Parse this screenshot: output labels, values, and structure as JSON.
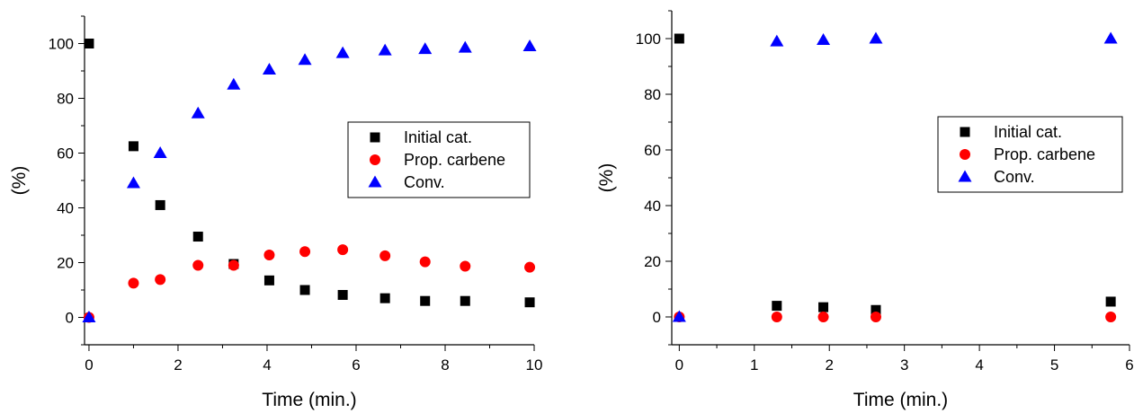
{
  "chart_data": [
    {
      "type": "scatter",
      "title": "",
      "xlabel": "Time (min.)",
      "ylabel": "(%)",
      "xlim": [
        -0.1,
        10
      ],
      "ylim": [
        -10,
        110
      ],
      "xticks": [
        0,
        2,
        4,
        6,
        8,
        10
      ],
      "yticks": [
        0,
        20,
        40,
        60,
        80,
        100
      ],
      "grid": false,
      "legend_position": "center-right",
      "series": [
        {
          "name": "Initial cat.",
          "marker": "square",
          "color": "#000000",
          "x": [
            0,
            1,
            1.6,
            2.45,
            3.25,
            4.05,
            4.85,
            5.7,
            6.65,
            7.55,
            8.45,
            9.9
          ],
          "y": [
            100,
            62.5,
            41,
            29.5,
            19.5,
            13.5,
            10,
            8.2,
            7,
            6,
            6,
            5.5
          ]
        },
        {
          "name": "Prop. carbene",
          "marker": "circle",
          "color": "#ff0000",
          "x": [
            0,
            1,
            1.6,
            2.45,
            3.25,
            4.05,
            4.85,
            5.7,
            6.65,
            7.55,
            8.45,
            9.9
          ],
          "y": [
            0,
            12.5,
            13.8,
            19,
            19,
            22.8,
            24,
            24.7,
            22.5,
            20.3,
            18.7,
            18.3
          ]
        },
        {
          "name": "Conv.",
          "marker": "triangle",
          "color": "#0000ff",
          "x": [
            0,
            1,
            1.6,
            2.45,
            3.25,
            4.05,
            4.85,
            5.7,
            6.65,
            7.55,
            8.45,
            9.9
          ],
          "y": [
            0,
            49,
            60,
            74.5,
            85,
            90.5,
            94,
            96.5,
            97.5,
            98,
            98.5,
            99
          ]
        }
      ]
    },
    {
      "type": "scatter",
      "title": "",
      "xlabel": "Time (min.)",
      "ylabel": "(%)",
      "xlim": [
        -0.1,
        6
      ],
      "ylim": [
        -10,
        110
      ],
      "xticks": [
        0,
        1,
        2,
        3,
        4,
        5,
        6
      ],
      "yticks": [
        0,
        20,
        40,
        60,
        80,
        100
      ],
      "grid": false,
      "legend_position": "center-right",
      "series": [
        {
          "name": "Initial cat.",
          "marker": "square",
          "color": "#000000",
          "x": [
            0,
            1.3,
            1.92,
            2.62,
            5.75
          ],
          "y": [
            100,
            4,
            3.5,
            2.5,
            5.5
          ]
        },
        {
          "name": "Prop. carbene",
          "marker": "circle",
          "color": "#ff0000",
          "x": [
            0,
            1.3,
            1.92,
            2.62,
            5.75
          ],
          "y": [
            0,
            0,
            0,
            0,
            0
          ]
        },
        {
          "name": "Conv.",
          "marker": "triangle",
          "color": "#0000ff",
          "x": [
            0,
            1.3,
            1.92,
            2.62,
            5.75
          ],
          "y": [
            0,
            99,
            99.5,
            100,
            100
          ]
        }
      ]
    }
  ]
}
